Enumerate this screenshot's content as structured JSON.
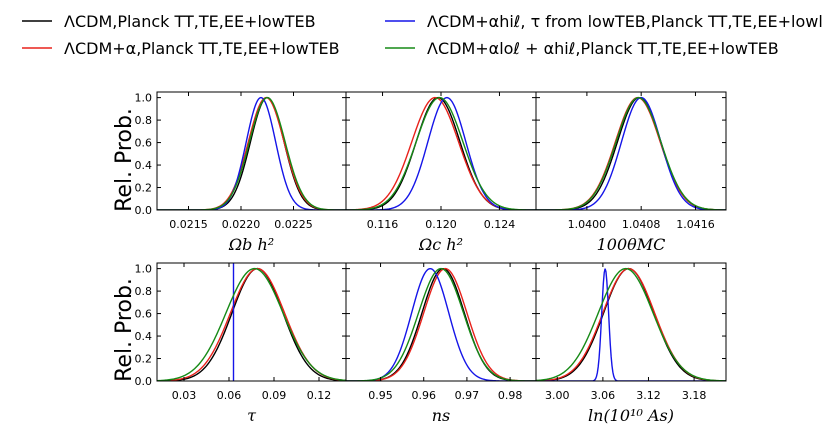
{
  "legend": [
    {
      "label": "ΛCDM,Planck TT,TE,EE+lowTEB",
      "color": "#000000"
    },
    {
      "label": "ΛCDM+α,Planck TT,TE,EE+lowTEB",
      "color": "#e8221b"
    },
    {
      "label": "ΛCDM+αhiℓ, τ from lowTEB,Planck TT,TE,EE+lowl",
      "color": "#1515e8"
    },
    {
      "label": "ΛCDM+αloℓ + αhiℓ,Planck TT,TE,EE+lowTEB",
      "color": "#168a16"
    }
  ],
  "ylabel": "Rel. Prob.",
  "chart_data": [
    {
      "type": "line",
      "xlabel": "Ωb h²",
      "xlim": [
        0.0212,
        0.023
      ],
      "xticks": [
        "0.0215",
        "0.0220",
        "0.0225"
      ],
      "xtick_values": [
        0.0215,
        0.022,
        0.0225
      ],
      "ylim": [
        0,
        1.05
      ],
      "yticks": [
        "0.0",
        "0.2",
        "0.4",
        "0.6",
        "0.8",
        "1.0"
      ],
      "series": [
        {
          "name": "ΛCDM,Planck TT,TE,EE+lowTEB",
          "mean": 0.02225,
          "sigma": 0.00016
        },
        {
          "name": "ΛCDM+α,Planck TT,TE,EE+lowTEB",
          "mean": 0.02224,
          "sigma": 0.00017
        },
        {
          "name": "ΛCDM+αhiℓ, τ from lowTEB",
          "mean": 0.02219,
          "sigma": 0.00014
        },
        {
          "name": "ΛCDM+αloℓ + αhiℓ",
          "mean": 0.02225,
          "sigma": 0.00017
        }
      ]
    },
    {
      "type": "line",
      "xlabel": "Ωc h²",
      "xlim": [
        0.1135,
        0.1265
      ],
      "xticks": [
        "0.116",
        "0.120",
        "0.124"
      ],
      "xtick_values": [
        0.116,
        0.12,
        0.124
      ],
      "ylim": [
        0,
        1.05
      ],
      "yticks": [
        "0.0",
        "0.2",
        "0.4",
        "0.6",
        "0.8",
        "1.0"
      ],
      "series": [
        {
          "name": "ΛCDM,Planck TT,TE,EE+lowTEB",
          "mean": 0.1198,
          "sigma": 0.0015
        },
        {
          "name": "ΛCDM+α,Planck TT,TE,EE+lowTEB",
          "mean": 0.1196,
          "sigma": 0.0016
        },
        {
          "name": "ΛCDM+αhiℓ, τ from lowTEB",
          "mean": 0.1204,
          "sigma": 0.0013
        },
        {
          "name": "ΛCDM+αloℓ + αhiℓ",
          "mean": 0.1199,
          "sigma": 0.0016
        }
      ]
    },
    {
      "type": "line",
      "xlabel": "100θMC",
      "xlim": [
        1.03925,
        1.04205
      ],
      "xticks": [
        "1.0400",
        "1.0408",
        "1.0416"
      ],
      "xtick_values": [
        1.04,
        1.0408,
        1.0416
      ],
      "ylim": [
        0,
        1.05
      ],
      "yticks": [
        "0.0",
        "0.2",
        "0.4",
        "0.6",
        "0.8",
        "1.0"
      ],
      "series": [
        {
          "name": "ΛCDM,Planck TT,TE,EE+lowTEB",
          "mean": 1.04077,
          "sigma": 0.00032
        },
        {
          "name": "ΛCDM+α,Planck TT,TE,EE+lowTEB",
          "mean": 1.04075,
          "sigma": 0.00033
        },
        {
          "name": "ΛCDM+αhiℓ, τ from lowTEB",
          "mean": 1.0408,
          "sigma": 0.00029
        },
        {
          "name": "ΛCDM+αloℓ + αhiℓ",
          "mean": 1.04076,
          "sigma": 0.00033
        }
      ]
    },
    {
      "type": "line",
      "xlabel": "τ",
      "xlim": [
        0.012,
        0.138
      ],
      "xticks": [
        "0.03",
        "0.06",
        "0.09",
        "0.12"
      ],
      "xtick_values": [
        0.03,
        0.06,
        0.09,
        0.12
      ],
      "ylim": [
        0,
        1.05
      ],
      "yticks": [
        "0.0",
        "0.2",
        "0.4",
        "0.6",
        "0.8",
        "1.0"
      ],
      "series": [
        {
          "name": "ΛCDM,Planck TT,TE,EE+lowTEB",
          "mean": 0.079,
          "sigma": 0.017
        },
        {
          "name": "ΛCDM+α,Planck TT,TE,EE+lowTEB",
          "mean": 0.079,
          "sigma": 0.018
        },
        {
          "name": "ΛCDM+αhiℓ, τ from lowTEB",
          "vline": 0.063
        },
        {
          "name": "ΛCDM+αloℓ + αhiℓ",
          "mean": 0.077,
          "sigma": 0.019
        }
      ]
    },
    {
      "type": "line",
      "xlabel": "ns",
      "xlim": [
        0.942,
        0.986
      ],
      "xticks": [
        "0.95",
        "0.96",
        "0.97",
        "0.98"
      ],
      "xtick_values": [
        0.95,
        0.96,
        0.97,
        0.98
      ],
      "ylim": [
        0,
        1.05
      ],
      "yticks": [
        "0.0",
        "0.2",
        "0.4",
        "0.6",
        "0.8",
        "1.0"
      ],
      "series": [
        {
          "name": "ΛCDM,Planck TT,TE,EE+lowTEB",
          "mean": 0.9645,
          "sigma": 0.0049
        },
        {
          "name": "ΛCDM+α,Planck TT,TE,EE+lowTEB",
          "mean": 0.965,
          "sigma": 0.005
        },
        {
          "name": "ΛCDM+αhiℓ, τ from lowTEB",
          "mean": 0.9615,
          "sigma": 0.0043
        },
        {
          "name": "ΛCDM+αloℓ + αhiℓ",
          "mean": 0.964,
          "sigma": 0.0052
        }
      ]
    },
    {
      "type": "line",
      "xlabel": "ln(10¹⁰ As)",
      "xlim": [
        2.972,
        3.222
      ],
      "xticks": [
        "3.00",
        "3.06",
        "3.12",
        "3.18"
      ],
      "xtick_values": [
        3.0,
        3.06,
        3.12,
        3.18
      ],
      "ylim": [
        0,
        1.05
      ],
      "yticks": [
        "0.0",
        "0.2",
        "0.4",
        "0.6",
        "0.8",
        "1.0"
      ],
      "series": [
        {
          "name": "ΛCDM,Planck TT,TE,EE+lowTEB",
          "mean": 3.094,
          "sigma": 0.033
        },
        {
          "name": "ΛCDM+α,Planck TT,TE,EE+lowTEB",
          "mean": 3.094,
          "sigma": 0.034
        },
        {
          "name": "ΛCDM+αhiℓ, τ from lowTEB",
          "mean": 3.063,
          "sigma": 0.0045
        },
        {
          "name": "ΛCDM+αloℓ + αhiℓ",
          "mean": 3.09,
          "sigma": 0.036
        }
      ]
    }
  ]
}
